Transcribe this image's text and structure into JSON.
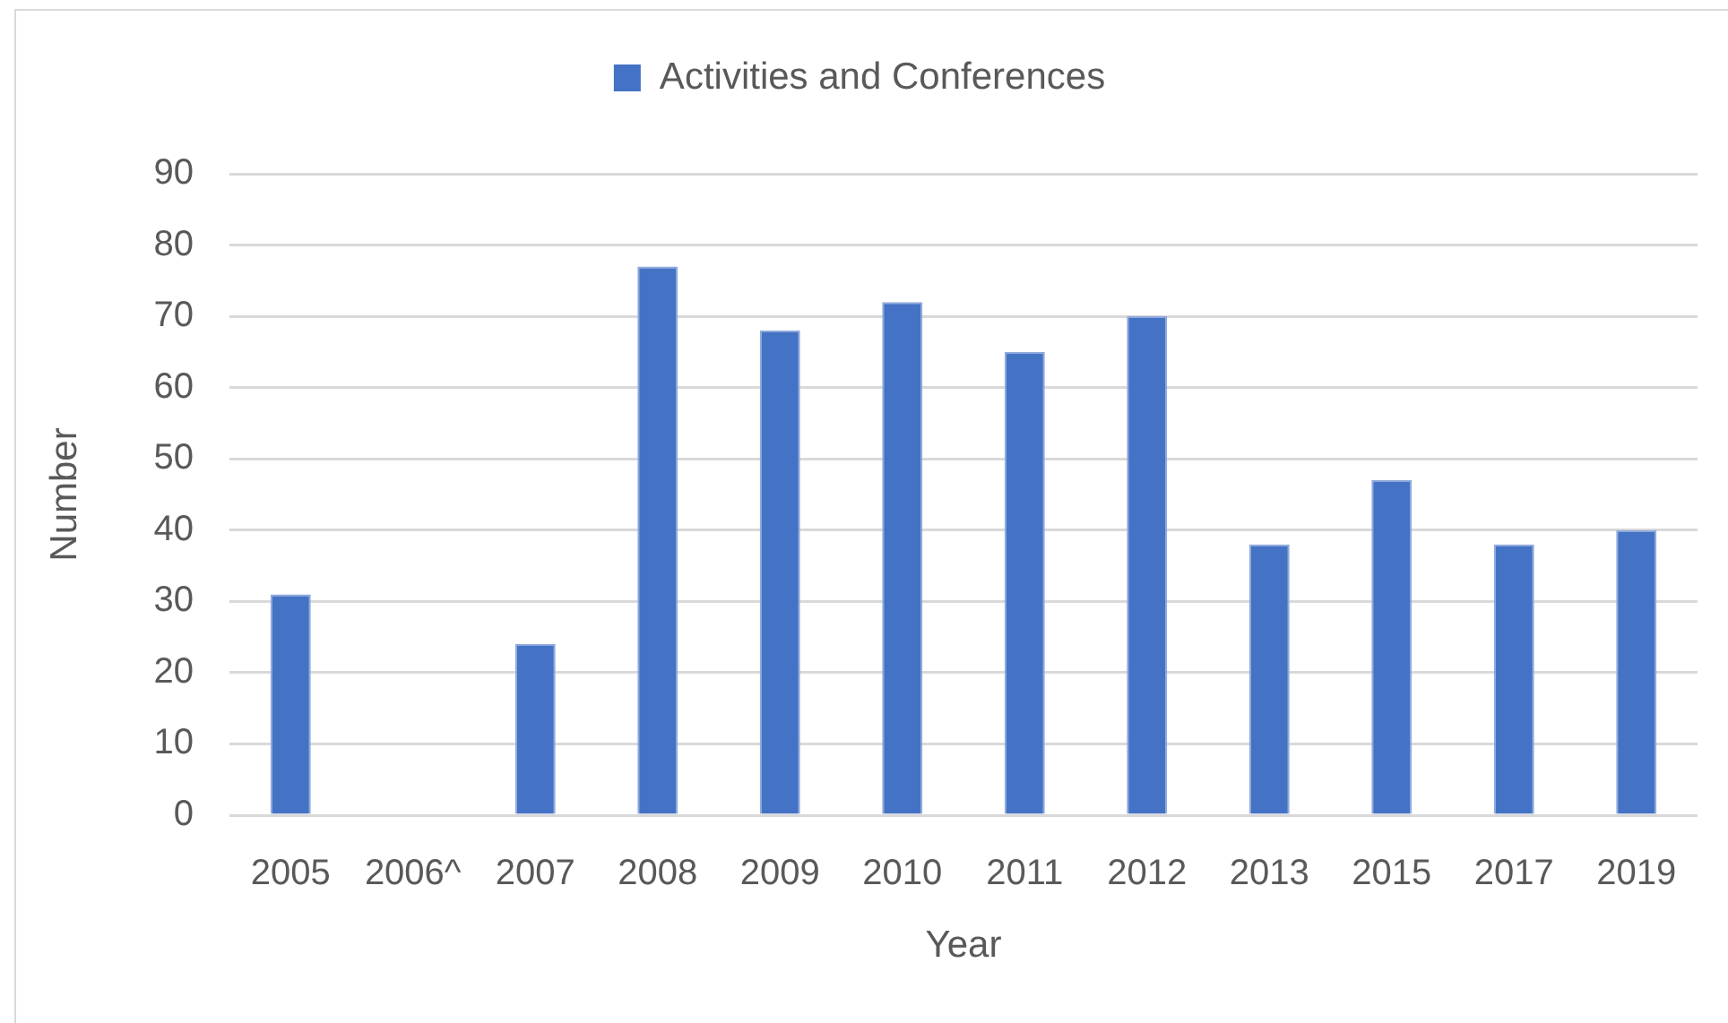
{
  "chart_data": {
    "type": "bar",
    "categories": [
      "2005",
      "2006^",
      "2007",
      "2008",
      "2009",
      "2010",
      "2011",
      "2012",
      "2013",
      "2015",
      "2017",
      "2019"
    ],
    "series": [
      {
        "name": "Activities and Conferences",
        "color": "#4472c4",
        "values": [
          31,
          null,
          24,
          77,
          68,
          72,
          65,
          70,
          38,
          47,
          38,
          40
        ]
      }
    ],
    "xlabel": "Year",
    "ylabel": "Number",
    "ylim": [
      0,
      90
    ],
    "yticks": [
      0,
      10,
      20,
      30,
      40,
      50,
      60,
      70,
      80,
      90
    ],
    "grid": "y",
    "legend": "top"
  }
}
